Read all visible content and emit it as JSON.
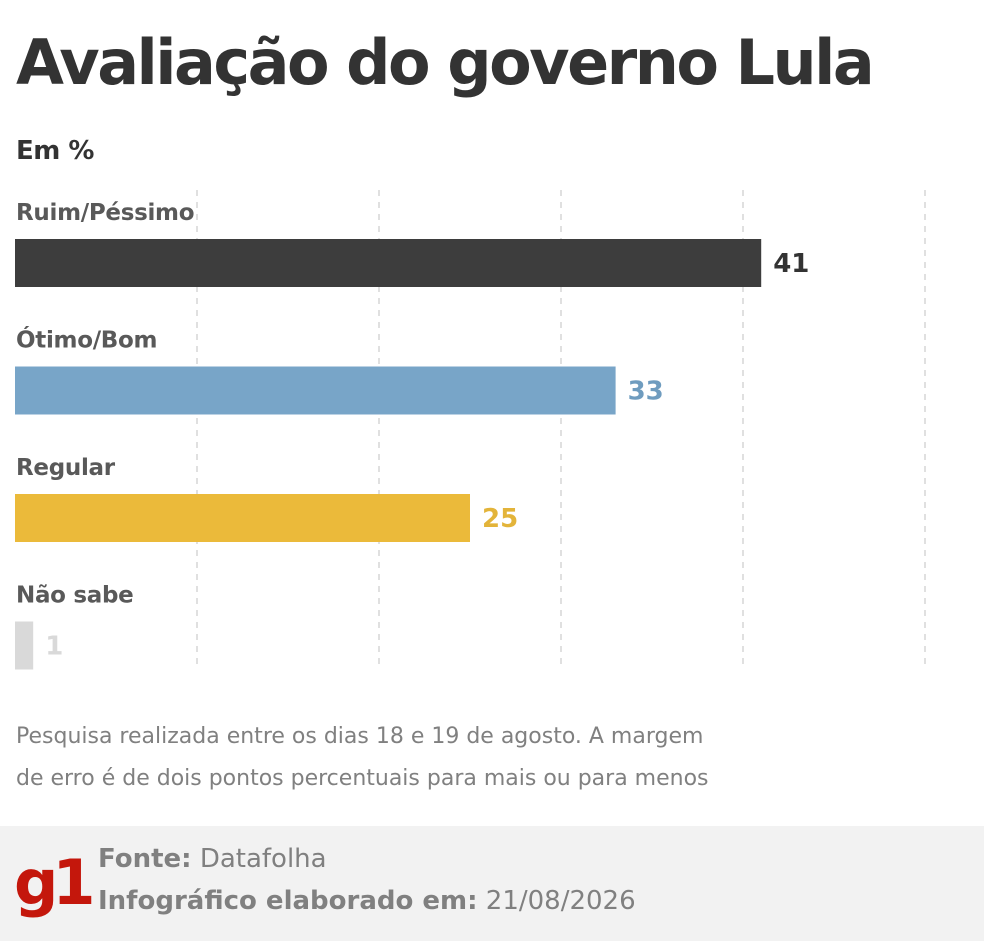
{
  "header": {
    "title": "Avaliação do governo Lula",
    "unit": "Em %"
  },
  "chart_data": {
    "type": "bar",
    "orientation": "horizontal",
    "categories": [
      "Ruim/Péssimo",
      "Ótimo/Bom",
      "Regular",
      "Não sabe"
    ],
    "values": [
      41,
      33,
      25,
      1
    ],
    "colors": [
      "#3d3d3d",
      "#78a5c8",
      "#ebba3a",
      "#d9d9d9"
    ],
    "xlim": [
      0,
      50
    ],
    "grid": true,
    "title": "Avaliação do governo Lula",
    "xlabel": "",
    "ylabel": ""
  },
  "note": {
    "line1": "Pesquisa realizada entre os dias 18 e 19 de agosto. A margem",
    "line2": "de erro é de dois pontos percentuais para mais ou para menos"
  },
  "footer": {
    "logo_text": "g1",
    "logo_color": "#c4170c",
    "source_label": "Fonte:",
    "source_value": "Datafolha",
    "date_label": "Infográfico elaborado em:",
    "date_value": "21/08/2026"
  }
}
